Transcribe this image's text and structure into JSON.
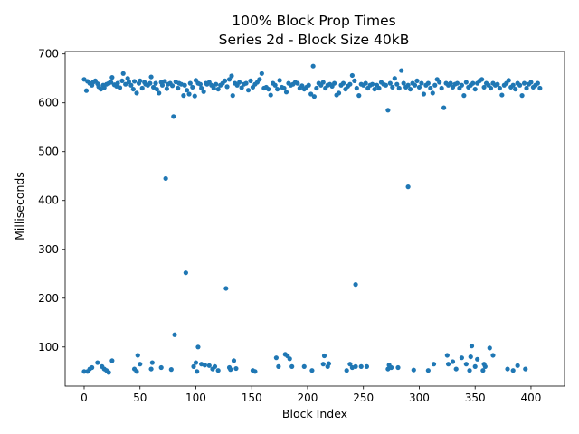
{
  "chart_data": {
    "type": "scatter",
    "title": "100% Block Prop Times",
    "subtitle": "Series 2d - Block Size 40kB",
    "xlabel": "Block Index",
    "ylabel": "Milliseconds",
    "xlim": [
      -17,
      430
    ],
    "ylim": [
      20,
      705
    ],
    "xticks": [
      0,
      50,
      100,
      150,
      200,
      250,
      300,
      350,
      400
    ],
    "yticks": [
      100,
      200,
      300,
      400,
      500,
      600,
      700
    ],
    "grid": false,
    "legend": "none",
    "marker_color": "#1f77b4",
    "series": [
      {
        "points": [
          [
            0,
            648
          ],
          [
            2,
            625
          ],
          [
            3,
            644
          ],
          [
            5,
            640
          ],
          [
            7,
            636
          ],
          [
            8,
            642
          ],
          [
            10,
            645
          ],
          [
            12,
            639
          ],
          [
            13,
            633
          ],
          [
            15,
            628
          ],
          [
            17,
            636
          ],
          [
            18,
            631
          ],
          [
            20,
            638
          ],
          [
            22,
            640
          ],
          [
            24,
            642
          ],
          [
            25,
            652
          ],
          [
            27,
            637
          ],
          [
            29,
            634
          ],
          [
            30,
            640
          ],
          [
            32,
            631
          ],
          [
            34,
            645
          ],
          [
            35,
            660
          ],
          [
            37,
            638
          ],
          [
            39,
            650
          ],
          [
            40,
            643
          ],
          [
            42,
            636
          ],
          [
            44,
            628
          ],
          [
            45,
            644
          ],
          [
            47,
            620
          ],
          [
            49,
            640
          ],
          [
            50,
            645
          ],
          [
            52,
            630
          ],
          [
            54,
            642
          ],
          [
            55,
            638
          ],
          [
            57,
            636
          ],
          [
            59,
            640
          ],
          [
            60,
            653
          ],
          [
            62,
            632
          ],
          [
            64,
            640
          ],
          [
            65,
            628
          ],
          [
            67,
            620
          ],
          [
            69,
            642
          ],
          [
            70,
            636
          ],
          [
            72,
            644
          ],
          [
            74,
            629
          ],
          [
            75,
            638
          ],
          [
            77,
            640
          ],
          [
            79,
            635
          ],
          [
            80,
            572
          ],
          [
            82,
            643
          ],
          [
            84,
            630
          ],
          [
            85,
            640
          ],
          [
            87,
            638
          ],
          [
            89,
            615
          ],
          [
            90,
            636
          ],
          [
            92,
            626
          ],
          [
            94,
            618
          ],
          [
            95,
            640
          ],
          [
            97,
            632
          ],
          [
            99,
            614
          ],
          [
            100,
            646
          ],
          [
            102,
            640
          ],
          [
            104,
            638
          ],
          [
            105,
            630
          ],
          [
            107,
            623
          ],
          [
            109,
            640
          ],
          [
            110,
            638
          ],
          [
            112,
            642
          ],
          [
            114,
            636
          ],
          [
            116,
            630
          ],
          [
            118,
            638
          ],
          [
            120,
            628
          ],
          [
            122,
            636
          ],
          [
            124,
            640
          ],
          [
            126,
            645
          ],
          [
            128,
            633
          ],
          [
            130,
            648
          ],
          [
            132,
            655
          ],
          [
            133,
            615
          ],
          [
            135,
            640
          ],
          [
            137,
            636
          ],
          [
            139,
            642
          ],
          [
            141,
            631
          ],
          [
            143,
            638
          ],
          [
            145,
            640
          ],
          [
            147,
            626
          ],
          [
            149,
            645
          ],
          [
            151,
            632
          ],
          [
            153,
            638
          ],
          [
            155,
            642
          ],
          [
            157,
            648
          ],
          [
            159,
            660
          ],
          [
            161,
            630
          ],
          [
            163,
            632
          ],
          [
            165,
            628
          ],
          [
            167,
            616
          ],
          [
            169,
            640
          ],
          [
            171,
            636
          ],
          [
            173,
            628
          ],
          [
            175,
            646
          ],
          [
            177,
            632
          ],
          [
            179,
            630
          ],
          [
            181,
            622
          ],
          [
            183,
            640
          ],
          [
            185,
            636
          ],
          [
            187,
            638
          ],
          [
            189,
            642
          ],
          [
            191,
            640
          ],
          [
            193,
            630
          ],
          [
            195,
            635
          ],
          [
            197,
            628
          ],
          [
            199,
            632
          ],
          [
            201,
            636
          ],
          [
            203,
            618
          ],
          [
            205,
            675
          ],
          [
            206,
            613
          ],
          [
            208,
            630
          ],
          [
            210,
            640
          ],
          [
            212,
            636
          ],
          [
            214,
            642
          ],
          [
            216,
            630
          ],
          [
            218,
            636
          ],
          [
            220,
            638
          ],
          [
            222,
            634
          ],
          [
            224,
            640
          ],
          [
            226,
            616
          ],
          [
            228,
            620
          ],
          [
            230,
            636
          ],
          [
            232,
            640
          ],
          [
            234,
            628
          ],
          [
            236,
            634
          ],
          [
            238,
            638
          ],
          [
            240,
            656
          ],
          [
            242,
            645
          ],
          [
            244,
            630
          ],
          [
            246,
            615
          ],
          [
            248,
            638
          ],
          [
            250,
            636
          ],
          [
            252,
            640
          ],
          [
            254,
            630
          ],
          [
            256,
            636
          ],
          [
            258,
            638
          ],
          [
            260,
            628
          ],
          [
            262,
            636
          ],
          [
            264,
            630
          ],
          [
            266,
            642
          ],
          [
            268,
            638
          ],
          [
            270,
            636
          ],
          [
            272,
            585
          ],
          [
            274,
            640
          ],
          [
            276,
            632
          ],
          [
            278,
            650
          ],
          [
            280,
            638
          ],
          [
            282,
            630
          ],
          [
            284,
            666
          ],
          [
            286,
            640
          ],
          [
            288,
            632
          ],
          [
            290,
            636
          ],
          [
            292,
            628
          ],
          [
            294,
            640
          ],
          [
            296,
            636
          ],
          [
            298,
            645
          ],
          [
            300,
            632
          ],
          [
            302,
            640
          ],
          [
            304,
            618
          ],
          [
            306,
            636
          ],
          [
            308,
            640
          ],
          [
            310,
            630
          ],
          [
            312,
            620
          ],
          [
            314,
            636
          ],
          [
            316,
            648
          ],
          [
            318,
            642
          ],
          [
            320,
            630
          ],
          [
            322,
            590
          ],
          [
            324,
            640
          ],
          [
            326,
            636
          ],
          [
            328,
            640
          ],
          [
            330,
            632
          ],
          [
            332,
            638
          ],
          [
            334,
            640
          ],
          [
            336,
            630
          ],
          [
            338,
            636
          ],
          [
            340,
            615
          ],
          [
            342,
            642
          ],
          [
            344,
            632
          ],
          [
            346,
            636
          ],
          [
            348,
            640
          ],
          [
            350,
            628
          ],
          [
            352,
            640
          ],
          [
            354,
            645
          ],
          [
            356,
            648
          ],
          [
            358,
            632
          ],
          [
            360,
            640
          ],
          [
            362,
            636
          ],
          [
            364,
            630
          ],
          [
            366,
            640
          ],
          [
            368,
            636
          ],
          [
            370,
            638
          ],
          [
            372,
            630
          ],
          [
            374,
            616
          ],
          [
            376,
            636
          ],
          [
            378,
            640
          ],
          [
            380,
            646
          ],
          [
            382,
            632
          ],
          [
            384,
            636
          ],
          [
            386,
            628
          ],
          [
            388,
            640
          ],
          [
            390,
            636
          ],
          [
            392,
            615
          ],
          [
            394,
            640
          ],
          [
            396,
            630
          ],
          [
            398,
            638
          ],
          [
            400,
            642
          ],
          [
            402,
            632
          ],
          [
            404,
            636
          ],
          [
            406,
            640
          ],
          [
            408,
            630
          ],
          [
            73,
            445
          ],
          [
            91,
            252
          ],
          [
            127,
            220
          ],
          [
            243,
            228
          ],
          [
            290,
            428
          ],
          [
            81,
            125
          ],
          [
            102,
            100
          ],
          [
            0,
            50
          ],
          [
            3,
            50
          ],
          [
            5,
            55
          ],
          [
            7,
            58
          ],
          [
            12,
            68
          ],
          [
            16,
            60
          ],
          [
            18,
            55
          ],
          [
            20,
            52
          ],
          [
            22,
            48
          ],
          [
            25,
            72
          ],
          [
            45,
            55
          ],
          [
            47,
            50
          ],
          [
            48,
            83
          ],
          [
            50,
            65
          ],
          [
            60,
            55
          ],
          [
            61,
            68
          ],
          [
            69,
            58
          ],
          [
            78,
            54
          ],
          [
            98,
            60
          ],
          [
            100,
            68
          ],
          [
            101,
            50
          ],
          [
            105,
            65
          ],
          [
            108,
            63
          ],
          [
            112,
            62
          ],
          [
            115,
            55
          ],
          [
            117,
            60
          ],
          [
            120,
            52
          ],
          [
            130,
            58
          ],
          [
            131,
            54
          ],
          [
            134,
            72
          ],
          [
            136,
            56
          ],
          [
            151,
            52
          ],
          [
            153,
            50
          ],
          [
            172,
            78
          ],
          [
            174,
            60
          ],
          [
            180,
            85
          ],
          [
            182,
            82
          ],
          [
            184,
            76
          ],
          [
            186,
            60
          ],
          [
            197,
            60
          ],
          [
            204,
            52
          ],
          [
            214,
            65
          ],
          [
            215,
            82
          ],
          [
            218,
            60
          ],
          [
            219,
            66
          ],
          [
            235,
            52
          ],
          [
            238,
            65
          ],
          [
            240,
            58
          ],
          [
            243,
            60
          ],
          [
            248,
            60
          ],
          [
            253,
            60
          ],
          [
            272,
            55
          ],
          [
            273,
            63
          ],
          [
            275,
            58
          ],
          [
            281,
            58
          ],
          [
            295,
            53
          ],
          [
            308,
            52
          ],
          [
            313,
            65
          ],
          [
            325,
            83
          ],
          [
            326,
            65
          ],
          [
            330,
            70
          ],
          [
            333,
            55
          ],
          [
            338,
            78
          ],
          [
            342,
            65
          ],
          [
            345,
            52
          ],
          [
            346,
            80
          ],
          [
            347,
            102
          ],
          [
            350,
            60
          ],
          [
            352,
            75
          ],
          [
            357,
            52
          ],
          [
            358,
            65
          ],
          [
            359,
            60
          ],
          [
            363,
            98
          ],
          [
            366,
            83
          ],
          [
            379,
            55
          ],
          [
            384,
            52
          ],
          [
            388,
            62
          ],
          [
            395,
            55
          ]
        ]
      }
    ]
  }
}
